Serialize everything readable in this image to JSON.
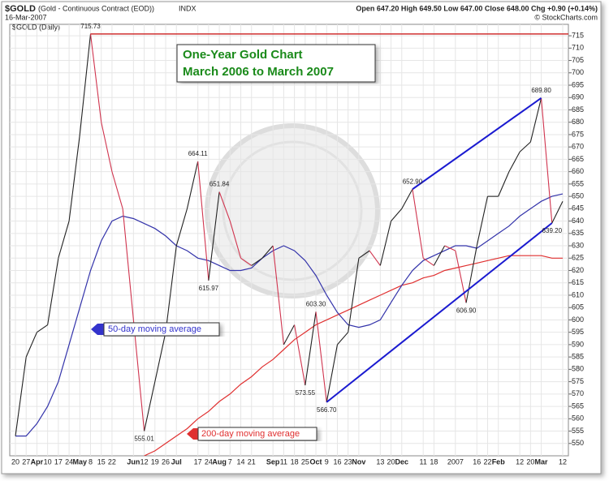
{
  "header": {
    "symbol": "$GOLD",
    "description": "(Gold - Continuous Contract (EOD))",
    "exchange": "INDX",
    "date": "16-Mar-2007",
    "stats": "Open 647.20  High 649.50  Low 647.00  Close 648.00  Chg +0.90 (+0.14%)",
    "source": "© StockCharts.com",
    "panel_label": "$GOLD (Daily)"
  },
  "chart_data": {
    "type": "line",
    "title": "One-Year Gold Chart",
    "subtitle": "March 2006 to March 2007",
    "categories": [
      "20",
      "27",
      "Apr",
      "10",
      "17",
      "24",
      "May",
      "8",
      "15",
      "22",
      null,
      "Jun",
      "12",
      "19",
      "26",
      "Jul",
      null,
      "17",
      "24",
      "Aug",
      "7",
      "14",
      "21",
      null,
      "Sep",
      "11",
      "18",
      "25",
      "Oct",
      "9",
      "16",
      "23",
      "Nov",
      null,
      "13",
      "20",
      "Dec",
      null,
      "11",
      "18",
      null,
      "2007",
      null,
      "16",
      "22",
      "Feb",
      null,
      "12",
      "20",
      "Mar",
      null,
      "12"
    ],
    "series": [
      {
        "name": "$GOLD",
        "up_color": "#222222",
        "down_color": "#d0344e",
        "values": [
          553,
          585,
          595,
          598,
          625,
          640,
          675,
          715.73,
          680,
          660,
          645,
          600,
          555.01,
          575,
          595,
          630,
          645,
          664.11,
          615.97,
          651.84,
          640,
          625,
          622,
          625,
          630,
          590,
          598,
          573.55,
          603.3,
          566.7,
          590,
          595,
          625,
          628,
          622,
          640,
          645,
          652.9,
          625,
          622,
          630,
          628,
          606.9,
          630,
          650,
          650,
          660,
          668,
          672,
          689.8,
          639.2,
          648
        ],
        "value_labels": [
          null,
          null,
          null,
          null,
          null,
          null,
          null,
          "715.73",
          null,
          null,
          null,
          null,
          "555.01",
          null,
          null,
          null,
          null,
          "664.11",
          "615.97",
          "651.84",
          null,
          null,
          null,
          null,
          null,
          null,
          null,
          "573.55",
          "603.30",
          "566.70",
          null,
          null,
          null,
          null,
          null,
          null,
          null,
          "652.90",
          null,
          null,
          null,
          null,
          "606.90",
          null,
          null,
          null,
          null,
          null,
          null,
          "689.80",
          "639.20",
          null
        ]
      },
      {
        "name": "50-day moving average",
        "color": "#3333aa",
        "values": [
          553,
          553,
          558,
          565,
          575,
          590,
          605,
          620,
          632,
          640,
          642,
          641,
          639,
          637,
          634,
          630,
          628,
          625,
          624,
          622,
          620,
          620,
          621,
          625,
          628,
          630,
          628,
          624,
          618,
          610,
          603,
          598,
          597,
          598,
          600,
          607,
          614,
          620,
          624,
          626,
          628,
          630,
          630,
          629,
          632,
          635,
          638,
          642,
          645,
          648,
          650,
          651
        ]
      },
      {
        "name": "200-day moving average",
        "color": "#e03030",
        "values": [
          null,
          null,
          null,
          null,
          null,
          null,
          null,
          null,
          null,
          null,
          null,
          null,
          545,
          547,
          550,
          553,
          556,
          560,
          563,
          567,
          570,
          574,
          577,
          581,
          584,
          588,
          592,
          595,
          598,
          600,
          602,
          604,
          606,
          608,
          610,
          612,
          614,
          615,
          617,
          618,
          620,
          621,
          622,
          623,
          624,
          625,
          626,
          626,
          626,
          626,
          625,
          625
        ]
      }
    ],
    "ylim": [
      545,
      717
    ],
    "yticks": [
      550,
      555,
      560,
      565,
      570,
      575,
      580,
      585,
      590,
      595,
      600,
      605,
      610,
      615,
      620,
      625,
      630,
      635,
      640,
      645,
      650,
      655,
      660,
      665,
      670,
      675,
      680,
      685,
      690,
      695,
      700,
      705,
      710,
      715
    ],
    "grid": true
  }
}
